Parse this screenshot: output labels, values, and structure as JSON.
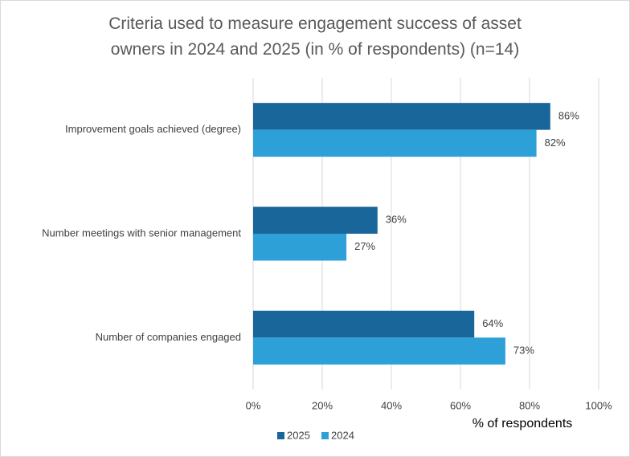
{
  "chart_data": {
    "type": "hbar",
    "title": "Criteria used to measure engagement success of asset owners in 2024 and 2025 (in % of respondents) (n=14)",
    "x_label": "% of respondents",
    "categories": [
      "Improvement goals achieved (degree)",
      "Number meetings with senior management",
      "Number of companies engaged"
    ],
    "series": [
      {
        "name": "2025",
        "color": "#19669a",
        "values": [
          86,
          36,
          64
        ],
        "value_labels": [
          "86%",
          "36%",
          "64%"
        ]
      },
      {
        "name": "2024",
        "color": "#2ea0d8",
        "values": [
          82,
          27,
          73
        ],
        "value_labels": [
          "82%",
          "27%",
          "73%"
        ]
      }
    ],
    "xlim": [
      0,
      100
    ],
    "xticks": [
      {
        "value": 0,
        "label": "0%"
      },
      {
        "value": 20,
        "label": "20%"
      },
      {
        "value": 40,
        "label": "40%"
      },
      {
        "value": 60,
        "label": "60%"
      },
      {
        "value": 80,
        "label": "80%"
      },
      {
        "value": 100,
        "label": "100%"
      }
    ],
    "grid": true,
    "legend": "bottom"
  }
}
